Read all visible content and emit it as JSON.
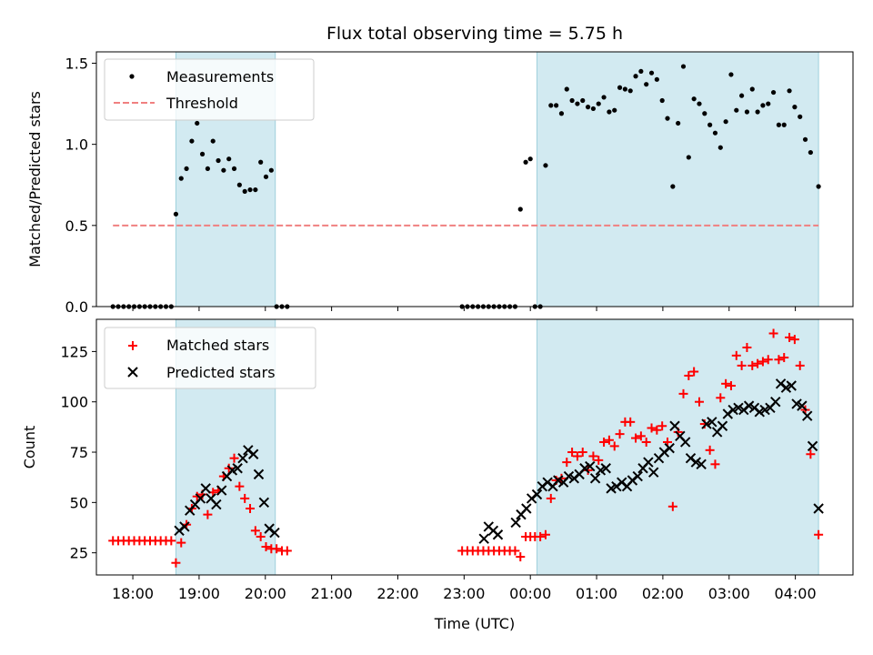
{
  "chart_data": [
    {
      "type": "scatter",
      "title": "Flux total observing time = 5.75 h",
      "ylabel": "Matched/Predicted stars",
      "xlabel": "",
      "x_range_hours": [
        -6.55,
        4.87
      ],
      "ylim": [
        0,
        1.57
      ],
      "yticks": [
        0.0,
        0.5,
        1.0,
        1.5
      ],
      "ytick_labels": [
        "0.0",
        "0.5",
        "1.0",
        "1.5"
      ],
      "highlight_spans_hours": [
        [
          -5.35,
          -3.85
        ],
        [
          0.1,
          4.35
        ]
      ],
      "threshold": {
        "label": "Threshold",
        "value": 0.5,
        "x_start": -6.3,
        "x_end": 4.35
      },
      "legend": [
        {
          "label": "Measurements",
          "marker": "dot"
        },
        {
          "label": "Threshold",
          "marker": "dashed-line"
        }
      ],
      "series": [
        {
          "name": "Measurements",
          "x": [
            -6.3,
            -6.22,
            -6.14,
            -6.06,
            -5.98,
            -5.9,
            -5.82,
            -5.74,
            -5.66,
            -5.58,
            -5.5,
            -5.42,
            -5.35,
            -5.27,
            -5.19,
            -5.11,
            -5.03,
            -4.95,
            -4.87,
            -4.79,
            -4.71,
            -4.63,
            -4.55,
            -4.47,
            -4.39,
            -4.31,
            -4.23,
            -4.15,
            -4.07,
            -3.99,
            -3.91,
            -3.83,
            -3.75,
            -3.67,
            -1.03,
            -0.95,
            -0.87,
            -0.79,
            -0.71,
            -0.63,
            -0.55,
            -0.47,
            -0.39,
            -0.31,
            -0.23,
            -0.15,
            -0.07,
            0.0,
            0.07,
            0.15,
            0.23,
            0.31,
            0.39,
            0.47,
            0.55,
            0.63,
            0.71,
            0.79,
            0.87,
            0.95,
            1.03,
            1.11,
            1.19,
            1.27,
            1.35,
            1.43,
            1.51,
            1.59,
            1.67,
            1.75,
            1.83,
            1.91,
            1.99,
            2.07,
            2.15,
            2.23,
            2.31,
            2.39,
            2.47,
            2.55,
            2.63,
            2.71,
            2.79,
            2.87,
            2.95,
            3.03,
            3.11,
            3.19,
            3.27,
            3.35,
            3.43,
            3.51,
            3.59,
            3.67,
            3.75,
            3.83,
            3.91,
            3.99,
            4.07,
            4.15,
            4.23,
            4.35
          ],
          "y": [
            0,
            0,
            0,
            0,
            0,
            0,
            0,
            0,
            0,
            0,
            0,
            0,
            0.57,
            0.79,
            0.85,
            1.02,
            1.13,
            0.94,
            0.85,
            1.02,
            0.9,
            0.84,
            0.91,
            0.85,
            0.75,
            0.71,
            0.72,
            0.72,
            0.89,
            0.8,
            0.84,
            0,
            0,
            0,
            0,
            0,
            0,
            0,
            0,
            0,
            0,
            0,
            0,
            0,
            0,
            0.6,
            0.89,
            0.91,
            0,
            0,
            0.87,
            1.24,
            1.24,
            1.19,
            1.34,
            1.27,
            1.25,
            1.27,
            1.23,
            1.22,
            1.25,
            1.29,
            1.2,
            1.21,
            1.35,
            1.34,
            1.33,
            1.42,
            1.45,
            1.37,
            1.44,
            1.4,
            1.27,
            1.16,
            0.74,
            1.13,
            1.48,
            0.92,
            1.28,
            1.25,
            1.19,
            1.12,
            1.07,
            0.98,
            1.14,
            1.43,
            1.21,
            1.3,
            1.2,
            1.34,
            1.2,
            1.24,
            1.25,
            1.32,
            1.12,
            1.12,
            1.33,
            1.23,
            1.17,
            1.03,
            0.95,
            0.74
          ]
        }
      ]
    },
    {
      "type": "scatter",
      "title": "",
      "ylabel": "Count",
      "xlabel": "Time (UTC)",
      "x_range_hours": [
        -6.55,
        4.87
      ],
      "ylim": [
        14,
        141
      ],
      "yticks": [
        25,
        50,
        75,
        100,
        125
      ],
      "ytick_labels": [
        "25",
        "50",
        "75",
        "100",
        "125"
      ],
      "xticks_hours": [
        -6,
        -5,
        -4,
        -3,
        -2,
        -1,
        0,
        1,
        2,
        3,
        4
      ],
      "xtick_labels": [
        "18:00",
        "19:00",
        "20:00",
        "21:00",
        "22:00",
        "23:00",
        "00:00",
        "01:00",
        "02:00",
        "03:00",
        "04:00"
      ],
      "highlight_spans_hours": [
        [
          -5.35,
          -3.85
        ],
        [
          0.1,
          4.35
        ]
      ],
      "legend": [
        {
          "label": "Matched stars",
          "marker": "plus",
          "color": "#ff0000"
        },
        {
          "label": "Predicted stars",
          "marker": "x",
          "color": "#000000"
        }
      ],
      "series": [
        {
          "name": "Matched stars",
          "color": "#ff0000",
          "x": [
            -6.3,
            -6.22,
            -6.14,
            -6.06,
            -5.98,
            -5.9,
            -5.82,
            -5.74,
            -5.66,
            -5.58,
            -5.5,
            -5.42,
            -5.35,
            -5.27,
            -5.19,
            -5.11,
            -5.03,
            -4.95,
            -4.87,
            -4.79,
            -4.71,
            -4.63,
            -4.55,
            -4.47,
            -4.39,
            -4.31,
            -4.23,
            -4.15,
            -4.07,
            -3.99,
            -3.91,
            -3.83,
            -3.75,
            -3.67,
            -1.03,
            -0.95,
            -0.87,
            -0.79,
            -0.71,
            -0.63,
            -0.55,
            -0.47,
            -0.39,
            -0.31,
            -0.23,
            -0.15,
            -0.07,
            0.0,
            0.07,
            0.15,
            0.23,
            0.31,
            0.39,
            0.47,
            0.55,
            0.63,
            0.71,
            0.79,
            0.87,
            0.95,
            1.03,
            1.11,
            1.19,
            1.27,
            1.35,
            1.43,
            1.51,
            1.59,
            1.67,
            1.75,
            1.83,
            1.91,
            1.99,
            2.07,
            2.15,
            2.23,
            2.31,
            2.39,
            2.47,
            2.55,
            2.63,
            2.71,
            2.79,
            2.87,
            2.95,
            3.03,
            3.11,
            3.19,
            3.27,
            3.35,
            3.43,
            3.51,
            3.59,
            3.67,
            3.75,
            3.83,
            3.91,
            3.99,
            4.07,
            4.15,
            4.23,
            4.35
          ],
          "y": [
            31,
            31,
            31,
            31,
            31,
            31,
            31,
            31,
            31,
            31,
            31,
            31,
            20,
            30,
            39,
            47,
            53,
            54,
            44,
            55,
            56,
            63,
            67,
            72,
            58,
            52,
            47,
            36,
            33,
            28,
            27,
            27,
            26,
            26,
            26,
            26,
            26,
            26,
            26,
            26,
            26,
            26,
            26,
            26,
            26,
            23,
            33,
            33,
            33,
            33,
            34,
            52,
            61,
            62,
            70,
            75,
            73,
            75,
            66,
            73,
            71,
            80,
            81,
            78,
            84,
            90,
            90,
            82,
            83,
            80,
            87,
            86,
            88,
            80,
            48,
            85,
            104,
            113,
            115,
            100,
            89,
            76,
            69,
            102,
            109,
            108,
            123,
            118,
            127,
            118,
            119,
            120,
            121,
            134,
            121,
            122,
            132,
            131,
            118,
            96,
            74,
            34
          ]
        },
        {
          "name": "Predicted stars",
          "color": "#000000",
          "x": [
            -5.3,
            -5.22,
            -5.14,
            -5.06,
            -4.98,
            -4.9,
            -4.82,
            -4.74,
            -4.66,
            -4.58,
            -4.5,
            -4.42,
            -4.34,
            -4.26,
            -4.18,
            -4.1,
            -4.02,
            -3.94,
            -3.86,
            -0.7,
            -0.63,
            -0.56,
            -0.49,
            -0.22,
            -0.14,
            -0.06,
            0.02,
            0.1,
            0.18,
            0.26,
            0.34,
            0.42,
            0.5,
            0.58,
            0.66,
            0.74,
            0.82,
            0.9,
            0.98,
            1.06,
            1.14,
            1.22,
            1.3,
            1.38,
            1.46,
            1.54,
            1.62,
            1.7,
            1.78,
            1.86,
            1.94,
            2.02,
            2.1,
            2.18,
            2.26,
            2.34,
            2.42,
            2.5,
            2.58,
            2.66,
            2.74,
            2.82,
            2.9,
            2.98,
            3.06,
            3.14,
            3.22,
            3.3,
            3.38,
            3.46,
            3.54,
            3.62,
            3.7,
            3.78,
            3.86,
            3.94,
            4.02,
            4.1,
            4.18,
            4.26,
            4.35
          ],
          "y": [
            36,
            38,
            46,
            49,
            52,
            57,
            52,
            49,
            56,
            63,
            66,
            67,
            72,
            76,
            74,
            64,
            50,
            37,
            35,
            32,
            38,
            36,
            34,
            40,
            44,
            47,
            52,
            54,
            58,
            60,
            58,
            61,
            60,
            63,
            62,
            64,
            67,
            68,
            62,
            66,
            67,
            57,
            58,
            60,
            58,
            61,
            63,
            67,
            70,
            65,
            72,
            75,
            77,
            88,
            83,
            80,
            72,
            70,
            69,
            89,
            90,
            85,
            88,
            94,
            96,
            97,
            96,
            98,
            97,
            95,
            96,
            97,
            100,
            109,
            107,
            108,
            99,
            98,
            93,
            78,
            47
          ]
        }
      ]
    }
  ]
}
